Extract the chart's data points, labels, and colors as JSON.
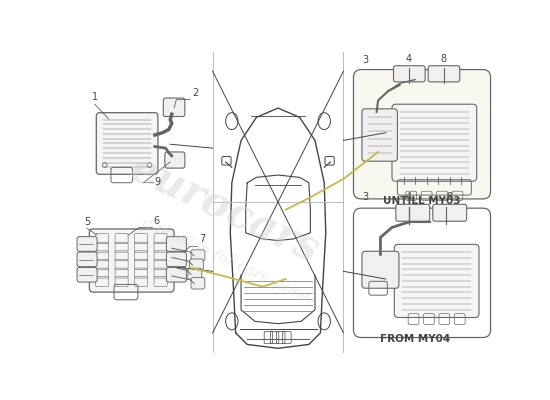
{
  "bg_color": "#ffffff",
  "diagram_color": "#666666",
  "line_color": "#444444",
  "yellow_color": "#c8b84a",
  "watermark_color": "#d0d0d0",
  "label_color": "#333333",
  "label_fontsize": 7,
  "untill_text": "UNTILL MY03",
  "from_text": "FROM MY04",
  "fig_width": 5.5,
  "fig_height": 4.0
}
